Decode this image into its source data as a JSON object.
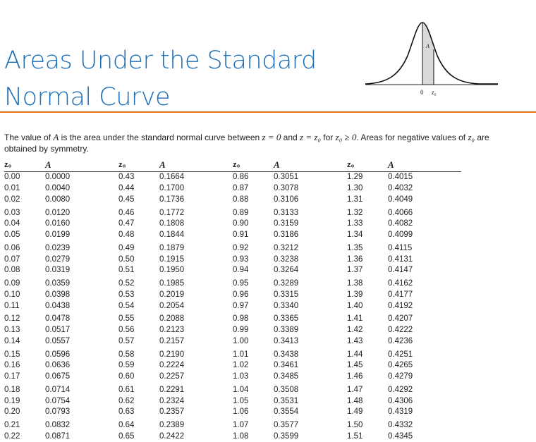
{
  "title": {
    "line1": "Areas Under the Standard",
    "line2": "Normal Curve"
  },
  "figure": {
    "area_label": "A",
    "zero_label": "0",
    "z0_label": "z₀",
    "accent": "#1e6fb8"
  },
  "description": {
    "part1": "The value of ",
    "A": "A",
    "part2": " is the area under the standard normal curve between ",
    "eq1": "z = 0",
    "part3": " and ",
    "eq2": "z = z₀",
    "part4": " for ",
    "eq3": "z₀ ≥ 0",
    "part5": ". Areas for negative values of ",
    "eq4": "z₀",
    "part6": " are obtained by symmetry."
  },
  "headers": [
    "z₀",
    "A",
    "z₀",
    "A",
    "z₀",
    "A",
    "z₀",
    "A"
  ],
  "rows": [
    [
      "0.00",
      "0.0000",
      "0.43",
      "0.1664",
      "0.86",
      "0.3051",
      "1.29",
      "0.4015"
    ],
    [
      "0.01",
      "0.0040",
      "0.44",
      "0.1700",
      "0.87",
      "0.3078",
      "1.30",
      "0.4032"
    ],
    [
      "0.02",
      "0.0080",
      "0.45",
      "0.1736",
      "0.88",
      "0.3106",
      "1.31",
      "0.4049"
    ],
    [
      "0.03",
      "0.0120",
      "0.46",
      "0.1772",
      "0.89",
      "0.3133",
      "1.32",
      "0.4066"
    ],
    [
      "0.04",
      "0.0160",
      "0.47",
      "0.1808",
      "0.90",
      "0.3159",
      "1.33",
      "0.4082"
    ],
    [
      "0.05",
      "0.0199",
      "0.48",
      "0.1844",
      "0.91",
      "0.3186",
      "1.34",
      "0.4099"
    ],
    [
      "0.06",
      "0.0239",
      "0.49",
      "0.1879",
      "0.92",
      "0.3212",
      "1.35",
      "0.4115"
    ],
    [
      "0.07",
      "0.0279",
      "0.50",
      "0.1915",
      "0.93",
      "0.3238",
      "1.36",
      "0.4131"
    ],
    [
      "0.08",
      "0.0319",
      "0.51",
      "0.1950",
      "0.94",
      "0.3264",
      "1.37",
      "0.4147"
    ],
    [
      "0.09",
      "0.0359",
      "0.52",
      "0.1985",
      "0.95",
      "0.3289",
      "1.38",
      "0.4162"
    ],
    [
      "0.10",
      "0.0398",
      "0.53",
      "0.2019",
      "0.96",
      "0.3315",
      "1.39",
      "0.4177"
    ],
    [
      "0.11",
      "0.0438",
      "0.54",
      "0.2054",
      "0.97",
      "0.3340",
      "1.40",
      "0.4192"
    ],
    [
      "0.12",
      "0.0478",
      "0.55",
      "0.2088",
      "0.98",
      "0.3365",
      "1.41",
      "0.4207"
    ],
    [
      "0.13",
      "0.0517",
      "0.56",
      "0.2123",
      "0.99",
      "0.3389",
      "1.42",
      "0.4222"
    ],
    [
      "0.14",
      "0.0557",
      "0.57",
      "0.2157",
      "1.00",
      "0.3413",
      "1.43",
      "0.4236"
    ],
    [
      "0.15",
      "0.0596",
      "0.58",
      "0.2190",
      "1.01",
      "0.3438",
      "1.44",
      "0.4251"
    ],
    [
      "0.16",
      "0.0636",
      "0.59",
      "0.2224",
      "1.02",
      "0.3461",
      "1.45",
      "0.4265"
    ],
    [
      "0.17",
      "0.0675",
      "0.60",
      "0.2257",
      "1.03",
      "0.3485",
      "1.46",
      "0.4279"
    ],
    [
      "0.18",
      "0.0714",
      "0.61",
      "0.2291",
      "1.04",
      "0.3508",
      "1.47",
      "0.4292"
    ],
    [
      "0.19",
      "0.0754",
      "0.62",
      "0.2324",
      "1.05",
      "0.3531",
      "1.48",
      "0.4306"
    ],
    [
      "0.20",
      "0.0793",
      "0.63",
      "0.2357",
      "1.06",
      "0.3554",
      "1.49",
      "0.4319"
    ],
    [
      "0.21",
      "0.0832",
      "0.64",
      "0.2389",
      "1.07",
      "0.3577",
      "1.50",
      "0.4332"
    ],
    [
      "0.22",
      "0.0871",
      "0.65",
      "0.2422",
      "1.08",
      "0.3599",
      "1.51",
      "0.4345"
    ]
  ]
}
